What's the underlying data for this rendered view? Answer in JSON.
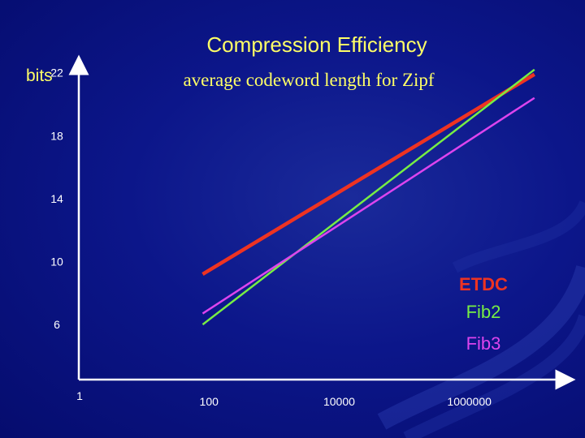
{
  "title": "Compression Efficiency",
  "subtitle": "average codeword length for Zipf",
  "y_unit_label": "bits",
  "chart_data": {
    "type": "line",
    "title": "Compression Efficiency",
    "subtitle": "average codeword length for Zipf",
    "ylabel": "bits",
    "xlabel": "",
    "x_scale": "log",
    "x_ticks": [
      "1",
      "100",
      "10000",
      "1000000"
    ],
    "x_tick_values": [
      1,
      100,
      10000,
      1000000
    ],
    "y_ticks": [
      "22",
      "18",
      "14",
      "10",
      "6"
    ],
    "y_tick_values": [
      22,
      18,
      14,
      10,
      6
    ],
    "xlim": [
      1,
      30000000
    ],
    "ylim": [
      2.5,
      22.5
    ],
    "grid": false,
    "legend": "right",
    "series": [
      {
        "name": "ETDC",
        "color": "#ee3322",
        "x": [
          80,
          10000000
        ],
        "y": [
          9.2,
          21.9
        ]
      },
      {
        "name": "Fib2",
        "color": "#77ee44",
        "x": [
          80,
          10000000
        ],
        "y": [
          6.0,
          22.2
        ]
      },
      {
        "name": "Fib3",
        "color": "#dd44ee",
        "x": [
          80,
          10000000
        ],
        "y": [
          6.7,
          20.4
        ]
      }
    ]
  }
}
